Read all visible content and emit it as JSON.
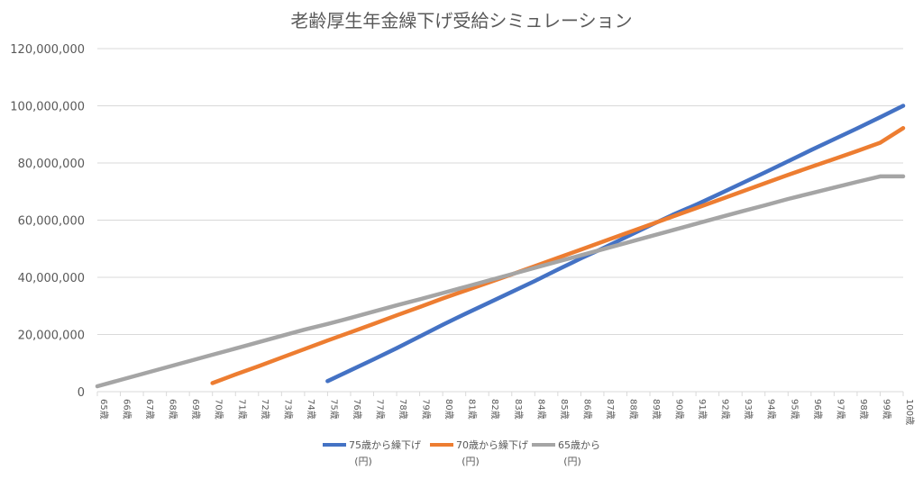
{
  "chart_data": {
    "type": "line",
    "title": "老齢厚生年金繰下げ受給シミュレーション",
    "xlabel": "",
    "ylabel": "",
    "x": [
      "65歳",
      "66歳",
      "67歳",
      "68歳",
      "69歳",
      "70歳",
      "71歳",
      "72歳",
      "73歳",
      "74歳",
      "75歳",
      "76歳",
      "77歳",
      "78歳",
      "79歳",
      "80歳",
      "81歳",
      "82歳",
      "83歳",
      "84歳",
      "85歳",
      "86歳",
      "87歳",
      "88歳",
      "89歳",
      "90歳",
      "91歳",
      "92歳",
      "93歳",
      "94歳",
      "95歳",
      "96歳",
      "97歳",
      "98歳",
      "99歳",
      "100歳"
    ],
    "ylim": [
      0,
      120000000
    ],
    "yticks": [
      {
        "value": 0,
        "label": "0"
      },
      {
        "value": 20000000,
        "label": "20,000,000"
      },
      {
        "value": 40000000,
        "label": "40,000,000"
      },
      {
        "value": 60000000,
        "label": "60,000,000"
      },
      {
        "value": 80000000,
        "label": "80,000,000"
      },
      {
        "value": 100000000,
        "label": "100,000,000"
      },
      {
        "value": 120000000,
        "label": "120,000,000"
      }
    ],
    "grid": true,
    "legend_position": "bottom",
    "series": [
      {
        "name": "75歳から繰下げ",
        "unit": "(円)",
        "color": "#4472C4",
        "values": [
          null,
          null,
          null,
          null,
          null,
          null,
          null,
          null,
          null,
          null,
          3700000,
          7500000,
          11300000,
          15200000,
          19300000,
          23400000,
          27300000,
          31100000,
          34900000,
          38700000,
          42700000,
          46600000,
          50300000,
          54200000,
          58100000,
          61900000,
          65400000,
          69100000,
          72900000,
          76700000,
          80600000,
          84500000,
          88300000,
          92100000,
          96000000,
          100000000
        ]
      },
      {
        "name": "70歳から繰下げ",
        "unit": "(円)",
        "color": "#ED7D31",
        "values": [
          null,
          null,
          null,
          null,
          null,
          3000000,
          6000000,
          8900000,
          11900000,
          14900000,
          17900000,
          20800000,
          23700000,
          26700000,
          29600000,
          32600000,
          35400000,
          38200000,
          41000000,
          43900000,
          46800000,
          49700000,
          52600000,
          55500000,
          58400000,
          61300000,
          64200000,
          67100000,
          70000000,
          72900000,
          75800000,
          78600000,
          81400000,
          84200000,
          87100000,
          92200000
        ]
      },
      {
        "name": "65歳から",
        "unit": "(円)",
        "color": "#A5A5A5",
        "values": [
          1900000,
          4100000,
          6300000,
          8500000,
          10700000,
          12900000,
          15100000,
          17300000,
          19500000,
          21700000,
          23700000,
          25800000,
          28000000,
          30200000,
          32300000,
          34500000,
          36700000,
          38900000,
          41100000,
          43300000,
          45500000,
          47700000,
          49900000,
          52100000,
          54300000,
          56500000,
          58700000,
          60900000,
          63100000,
          65200000,
          67400000,
          69400000,
          71400000,
          73400000,
          75300000,
          75300000
        ]
      }
    ]
  }
}
